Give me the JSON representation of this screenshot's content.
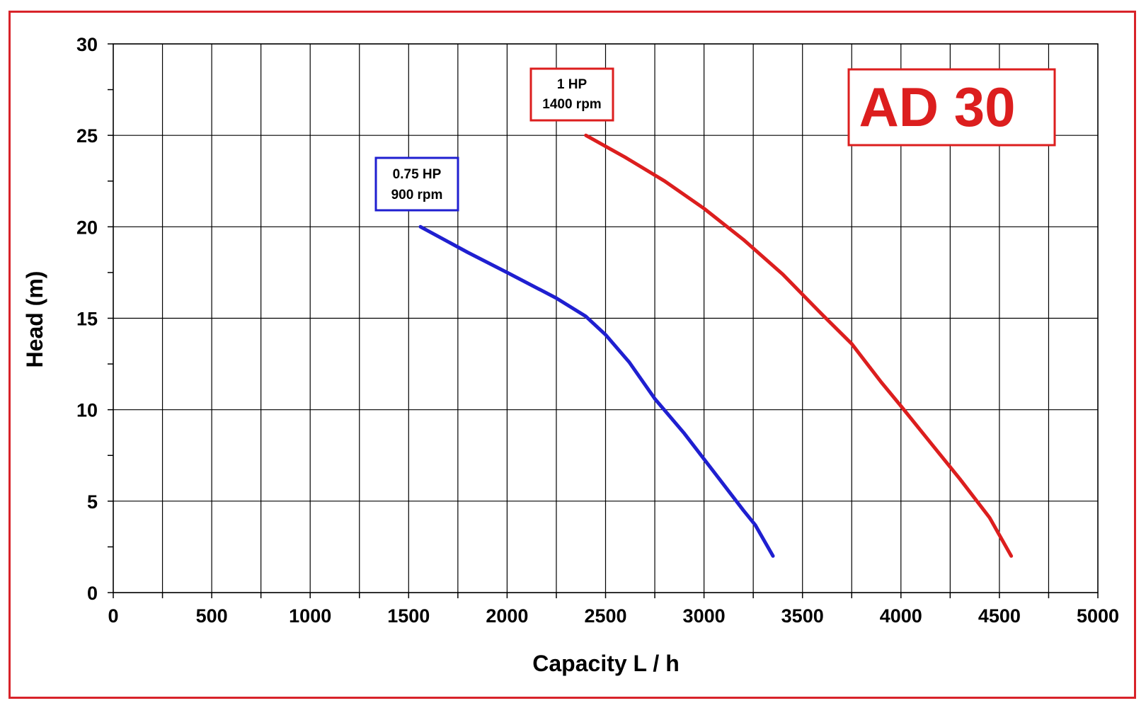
{
  "chart_data": {
    "type": "line",
    "title": "AD 30",
    "xlabel": "Capacity  L / h",
    "ylabel": "Head (m)",
    "xlim": [
      0,
      5000
    ],
    "ylim": [
      0,
      30
    ],
    "xticks": [
      0,
      500,
      1000,
      1500,
      2000,
      2500,
      3000,
      3500,
      4000,
      4500,
      5000
    ],
    "yticks": [
      0,
      5,
      10,
      15,
      20,
      25,
      30
    ],
    "grid": true,
    "series": [
      {
        "label_lines": [
          "0.75 HP",
          "900 rpm"
        ],
        "color": "#1f1fd0",
        "x": [
          1560,
          1800,
          2000,
          2250,
          2400,
          2500,
          2620,
          2750,
          2900,
          3050,
          3200,
          3260,
          3350
        ],
        "y": [
          20,
          18.6,
          17.5,
          16.1,
          15.1,
          14.1,
          12.6,
          10.6,
          8.7,
          6.6,
          4.5,
          3.7,
          2
        ]
      },
      {
        "label_lines": [
          "1 HP",
          "1400 rpm"
        ],
        "color": "#dc1e1e",
        "x": [
          2400,
          2600,
          2800,
          3000,
          3200,
          3400,
          3600,
          3750,
          3900,
          4000,
          4150,
          4300,
          4450,
          4560
        ],
        "y": [
          25,
          23.8,
          22.5,
          21,
          19.3,
          17.4,
          15.2,
          13.6,
          11.5,
          10.2,
          8.2,
          6.2,
          4.1,
          2
        ]
      }
    ]
  },
  "colors": {
    "frame": "#d8232a",
    "title": "#dc1e1e",
    "grid": "#000000"
  }
}
